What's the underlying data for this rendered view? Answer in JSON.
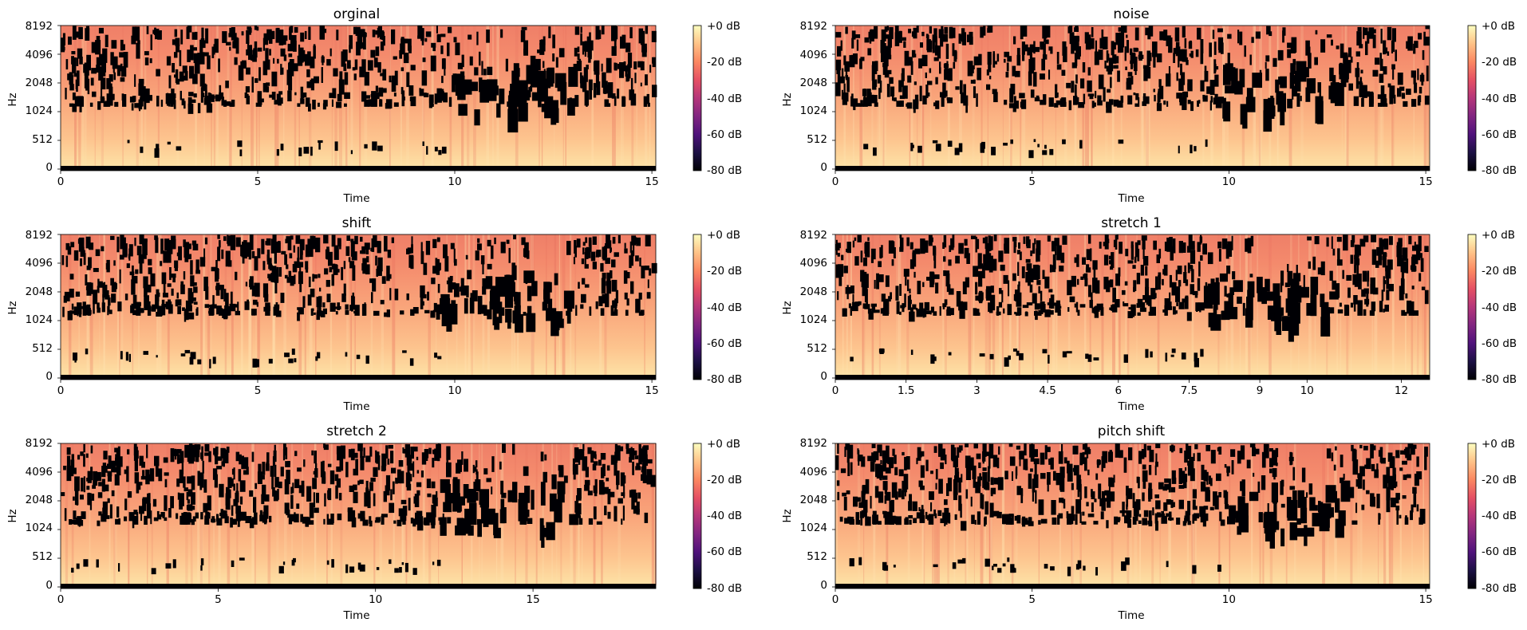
{
  "chart_data": [
    {
      "type": "heatmap",
      "title": "orginal",
      "xlabel": "Time",
      "ylabel": "Hz",
      "xlim": [
        0,
        15.1
      ],
      "xticks": [
        0,
        5,
        10,
        15
      ],
      "xtick_labels": [
        "0",
        "5",
        "10",
        "15"
      ],
      "yticks": [
        "0",
        "512",
        "1024",
        "2048",
        "4096",
        "8192"
      ],
      "gap_time_range": [
        9.8,
        12.9
      ],
      "seed": 11,
      "colorbar": {
        "ticks": [
          "+0 dB",
          "-20 dB",
          "-40 dB",
          "-60 dB",
          "-80 dB"
        ],
        "range_db": [
          -80,
          0
        ],
        "colormap": "magma"
      }
    },
    {
      "type": "heatmap",
      "title": "noise",
      "xlabel": "Time",
      "ylabel": "Hz",
      "xlim": [
        0,
        15.1
      ],
      "xticks": [
        0,
        5,
        10,
        15
      ],
      "xtick_labels": [
        "0",
        "5",
        "10",
        "15"
      ],
      "yticks": [
        "0",
        "512",
        "1024",
        "2048",
        "4096",
        "8192"
      ],
      "gap_time_range": [
        9.8,
        12.9
      ],
      "seed": 23,
      "colorbar": {
        "ticks": [
          "+0 dB",
          "-20 dB",
          "-40 dB",
          "-60 dB",
          "-80 dB"
        ],
        "range_db": [
          -80,
          0
        ],
        "colormap": "magma"
      }
    },
    {
      "type": "heatmap",
      "title": "shift",
      "xlabel": "Time",
      "ylabel": "Hz",
      "xlim": [
        0,
        15.1
      ],
      "xticks": [
        0,
        5,
        10,
        15
      ],
      "xtick_labels": [
        "0",
        "5",
        "10",
        "15"
      ],
      "yticks": [
        "0",
        "512",
        "1024",
        "2048",
        "4096",
        "8192"
      ],
      "gap_time_range": [
        9.6,
        12.9
      ],
      "seed": 37,
      "colorbar": {
        "ticks": [
          "+0 dB",
          "-20 dB",
          "-40 dB",
          "-60 dB",
          "-80 dB"
        ],
        "range_db": [
          -80,
          0
        ],
        "colormap": "magma"
      }
    },
    {
      "type": "heatmap",
      "title": "stretch 1",
      "xlabel": "Time",
      "ylabel": "Hz",
      "xlim": [
        0,
        12.6
      ],
      "xticks": [
        0,
        1.5,
        3,
        4.5,
        6,
        7.5,
        9,
        10,
        12
      ],
      "xtick_labels": [
        "0",
        "1.5",
        "3",
        "4.5",
        "6",
        "7.5",
        "9",
        "10",
        "12"
      ],
      "yticks": [
        "0",
        "512",
        "1024",
        "2048",
        "4096",
        "8192"
      ],
      "gap_time_range": [
        7.8,
        10.6
      ],
      "seed": 41,
      "colorbar": {
        "ticks": [
          "+0 dB",
          "-20 dB",
          "-40 dB",
          "-60 dB",
          "-80 dB"
        ],
        "range_db": [
          -80,
          0
        ],
        "colormap": "magma"
      }
    },
    {
      "type": "heatmap",
      "title": "stretch 2",
      "xlabel": "Time",
      "ylabel": "Hz",
      "xlim": [
        0,
        18.9
      ],
      "xticks": [
        0,
        5,
        10,
        15
      ],
      "xtick_labels": [
        "0",
        "5",
        "10",
        "15"
      ],
      "yticks": [
        "0",
        "512",
        "1024",
        "2048",
        "4096",
        "8192"
      ],
      "gap_time_range": [
        12.0,
        16.2
      ],
      "seed": 53,
      "colorbar": {
        "ticks": [
          "+0 dB",
          "-20 dB",
          "-40 dB",
          "-60 dB",
          "-80 dB"
        ],
        "range_db": [
          -80,
          0
        ],
        "colormap": "magma"
      }
    },
    {
      "type": "heatmap",
      "title": "pitch shift",
      "xlabel": "Time",
      "ylabel": "Hz",
      "xlim": [
        0,
        15.1
      ],
      "xticks": [
        0,
        5,
        10,
        15
      ],
      "xtick_labels": [
        "0",
        "5",
        "10",
        "15"
      ],
      "yticks": [
        "0",
        "512",
        "1024",
        "2048",
        "4096",
        "8192"
      ],
      "gap_time_range": [
        9.8,
        12.9
      ],
      "seed": 67,
      "colorbar": {
        "ticks": [
          "+0 dB",
          "-20 dB",
          "-40 dB",
          "-60 dB",
          "-80 dB"
        ],
        "range_db": [
          -80,
          0
        ],
        "colormap": "magma"
      }
    }
  ]
}
